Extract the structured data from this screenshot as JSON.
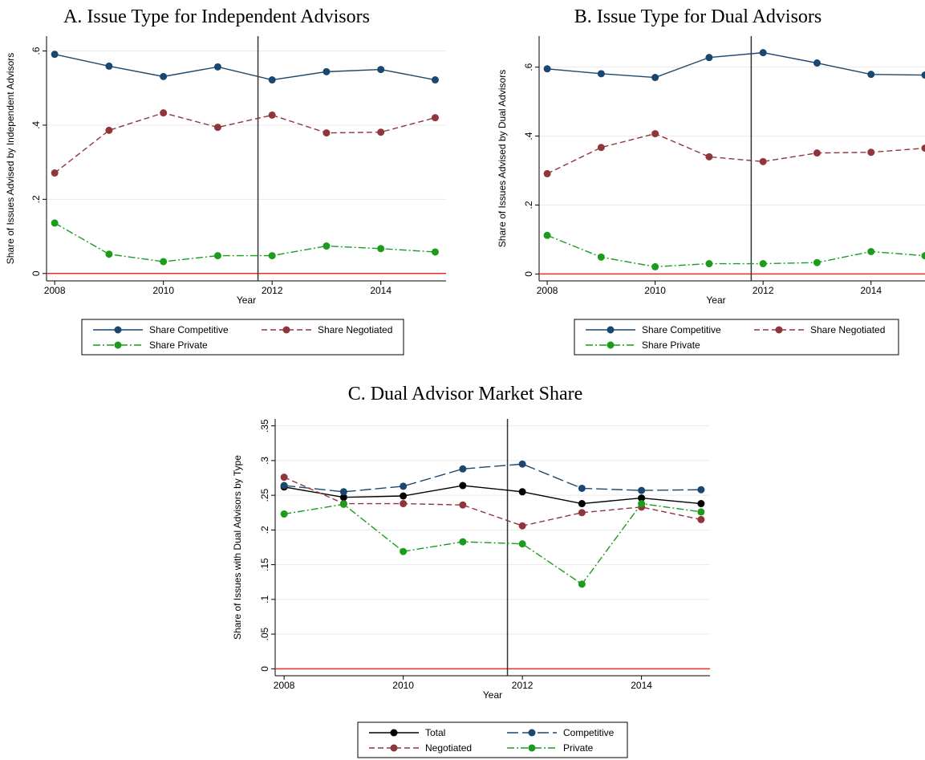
{
  "chart_data": [
    {
      "type": "line",
      "title": "A. Issue Type for Independent Advisors",
      "x_label": "Year",
      "y_label": "Share of Issues Advised by Independent Advisors",
      "x": [
        2008,
        2009,
        2010,
        2011,
        2012,
        2013,
        2014,
        2015
      ],
      "series": [
        {
          "name": "Share Competitive",
          "color": "#1a476f",
          "dash": "solid",
          "values": [
            0.591,
            0.559,
            0.531,
            0.557,
            0.522,
            0.544,
            0.55,
            0.522
          ]
        },
        {
          "name": "Share Negotiated",
          "color": "#90353b",
          "dash": "dash",
          "values": [
            0.271,
            0.386,
            0.433,
            0.394,
            0.427,
            0.379,
            0.381,
            0.42
          ]
        },
        {
          "name": "Share Private",
          "color": "#1c9c1c",
          "dash": "dashdot",
          "values": [
            0.136,
            0.052,
            0.032,
            0.048,
            0.048,
            0.074,
            0.067,
            0.058
          ]
        }
      ],
      "xlim": [
        2007.85,
        2015.2
      ],
      "ylim": [
        -0.02,
        0.64
      ],
      "xticks": [
        2008,
        2010,
        2012,
        2014
      ],
      "yticks": [
        0,
        {
          "value": 0.2,
          "label": ".2"
        },
        {
          "value": 0.4,
          "label": ".4"
        },
        {
          "value": 0.6,
          "label": ".6"
        }
      ],
      "grid": true,
      "vline": 2011.74,
      "vline_color": "#333333",
      "hline": 0,
      "hline_color": "#e8302a",
      "legend_columns": 2
    },
    {
      "type": "line",
      "title": "B. Issue Type for Dual Advisors",
      "x_label": "Year",
      "y_label": "Share of Issues Advised by Dual Advisors",
      "x": [
        2008,
        2009,
        2010,
        2011,
        2012,
        2013,
        2014,
        2015
      ],
      "series": [
        {
          "name": "Share Competitive",
          "color": "#1a476f",
          "dash": "solid",
          "values": [
            0.595,
            0.581,
            0.57,
            0.628,
            0.642,
            0.612,
            0.579,
            0.577
          ]
        },
        {
          "name": "Share Negotiated",
          "color": "#90353b",
          "dash": "dash",
          "values": [
            0.291,
            0.367,
            0.407,
            0.34,
            0.326,
            0.351,
            0.353,
            0.365
          ]
        },
        {
          "name": "Share Private",
          "color": "#1c9c1c",
          "dash": "dashdot",
          "values": [
            0.112,
            0.049,
            0.021,
            0.03,
            0.03,
            0.033,
            0.065,
            0.053
          ]
        }
      ],
      "xlim": [
        2007.85,
        2015.0
      ],
      "ylim": [
        -0.02,
        0.69
      ],
      "xticks": [
        2008,
        2010,
        2012,
        2014
      ],
      "yticks": [
        0,
        {
          "value": 0.2,
          "label": ".2"
        },
        {
          "value": 0.4,
          "label": ".4"
        },
        {
          "value": 0.6,
          "label": ".6"
        }
      ],
      "grid": true,
      "vline": 2011.78,
      "vline_color": "#333333",
      "hline": 0,
      "hline_color": "#e8302a",
      "legend_columns": 2
    },
    {
      "type": "line",
      "title": "C. Dual Advisor Market Share",
      "x_label": "Year",
      "y_label": "Share of Issues with Dual Advisors by Type",
      "x": [
        2008,
        2009,
        2010,
        2011,
        2012,
        2013,
        2014,
        2015
      ],
      "series": [
        {
          "name": "Total",
          "color": "#000000",
          "dash": "solid",
          "values": [
            0.262,
            0.247,
            0.249,
            0.264,
            0.255,
            0.238,
            0.246,
            0.238
          ]
        },
        {
          "name": "Competitive",
          "color": "#1a476f",
          "dash": "longdash",
          "values": [
            0.264,
            0.255,
            0.263,
            0.288,
            0.295,
            0.26,
            0.257,
            0.258
          ]
        },
        {
          "name": "Negotiated",
          "color": "#90353b",
          "dash": "dash",
          "values": [
            0.276,
            0.238,
            0.238,
            0.236,
            0.206,
            0.225,
            0.233,
            0.215
          ]
        },
        {
          "name": "Private",
          "color": "#1c9c1c",
          "dash": "dashdot",
          "values": [
            0.223,
            0.237,
            0.169,
            0.183,
            0.18,
            0.122,
            0.238,
            0.226
          ]
        }
      ],
      "xlim": [
        2007.85,
        2015.15
      ],
      "ylim": [
        -0.01,
        0.36
      ],
      "xticks": [
        2008,
        2010,
        2012,
        2014
      ],
      "yticks": [
        0,
        {
          "value": 0.05,
          "label": ".05"
        },
        {
          "value": 0.1,
          "label": ".1"
        },
        {
          "value": 0.15,
          "label": ".15"
        },
        {
          "value": 0.2,
          "label": ".2"
        },
        {
          "value": 0.25,
          "label": ".25"
        },
        {
          "value": 0.3,
          "label": ".3"
        },
        {
          "value": 0.35,
          "label": ".35"
        }
      ],
      "grid": true,
      "vline": 2011.75,
      "vline_color": "#333333",
      "hline": 0,
      "hline_color": "#e8302a",
      "legend_columns": 2
    }
  ]
}
